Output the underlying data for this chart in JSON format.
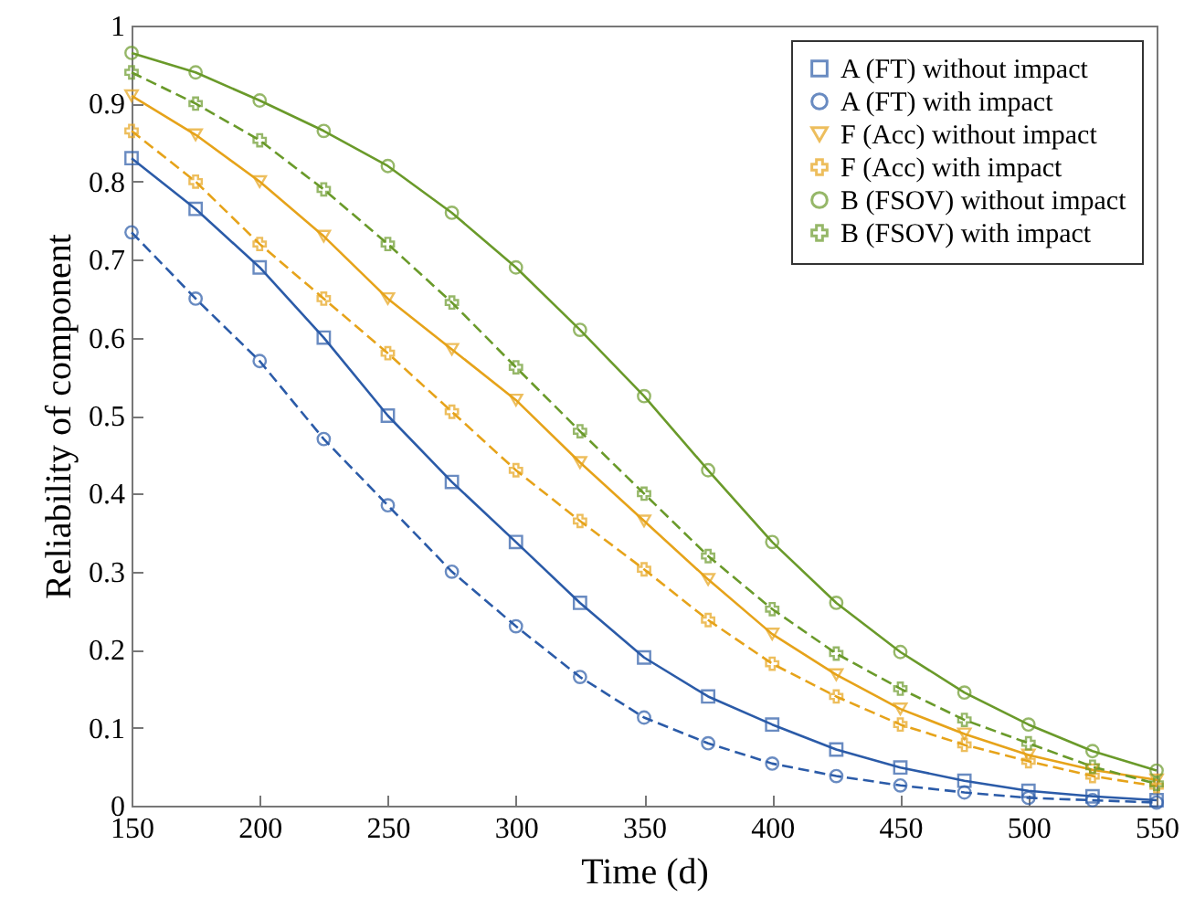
{
  "chart_data": {
    "type": "line",
    "xlabel": "Time (d)",
    "ylabel": "Reliability of component",
    "x": [
      150,
      175,
      200,
      225,
      250,
      275,
      300,
      325,
      350,
      375,
      400,
      425,
      450,
      475,
      500,
      525,
      550
    ],
    "xlim": [
      150,
      550
    ],
    "xticks": [
      150,
      200,
      250,
      300,
      350,
      400,
      450,
      500,
      550
    ],
    "ylim": [
      0,
      1
    ],
    "yticks": [
      0,
      0.1,
      0.2,
      0.3,
      0.4,
      0.5,
      0.6,
      0.7,
      0.8,
      0.9,
      1
    ],
    "grid": false,
    "legend": "top right",
    "series": [
      {
        "name": "A (FT) without impact",
        "color": "#2b5ba8",
        "marker": "square",
        "line_style": "solid",
        "values": [
          0.83,
          0.765,
          0.69,
          0.6,
          0.5,
          0.415,
          0.338,
          0.26,
          0.19,
          0.14,
          0.104,
          0.072,
          0.049,
          0.032,
          0.019,
          0.012,
          0.007
        ]
      },
      {
        "name": "A (FT) with impact",
        "color": "#2b5ba8",
        "marker": "circle",
        "line_style": "dashed",
        "values": [
          0.735,
          0.65,
          0.57,
          0.47,
          0.385,
          0.3,
          0.23,
          0.165,
          0.113,
          0.08,
          0.054,
          0.038,
          0.026,
          0.017,
          0.01,
          0.007,
          0.004
        ]
      },
      {
        "name": "F (Acc) without impact",
        "color": "#e6a31a",
        "marker": "triangle",
        "line_style": "solid",
        "values": [
          0.91,
          0.86,
          0.8,
          0.73,
          0.65,
          0.585,
          0.52,
          0.44,
          0.365,
          0.29,
          0.22,
          0.168,
          0.124,
          0.092,
          0.065,
          0.046,
          0.033
        ]
      },
      {
        "name": "F (Acc) with impact",
        "color": "#e6a31a",
        "marker": "cross",
        "line_style": "dashed",
        "values": [
          0.865,
          0.8,
          0.72,
          0.65,
          0.58,
          0.505,
          0.43,
          0.365,
          0.303,
          0.238,
          0.182,
          0.14,
          0.104,
          0.078,
          0.057,
          0.038,
          0.025
        ]
      },
      {
        "name": "B (FSOV) without impact",
        "color": "#6a9a2a",
        "marker": "circle",
        "line_style": "solid",
        "values": [
          0.965,
          0.94,
          0.904,
          0.865,
          0.82,
          0.76,
          0.69,
          0.61,
          0.525,
          0.43,
          0.338,
          0.26,
          0.197,
          0.145,
          0.104,
          0.07,
          0.045
        ]
      },
      {
        "name": "B (FSOV) with impact",
        "color": "#6a9a2a",
        "marker": "cross",
        "line_style": "dashed",
        "values": [
          0.94,
          0.9,
          0.853,
          0.79,
          0.72,
          0.645,
          0.562,
          0.48,
          0.4,
          0.32,
          0.252,
          0.195,
          0.15,
          0.11,
          0.08,
          0.05,
          0.028
        ]
      }
    ]
  }
}
